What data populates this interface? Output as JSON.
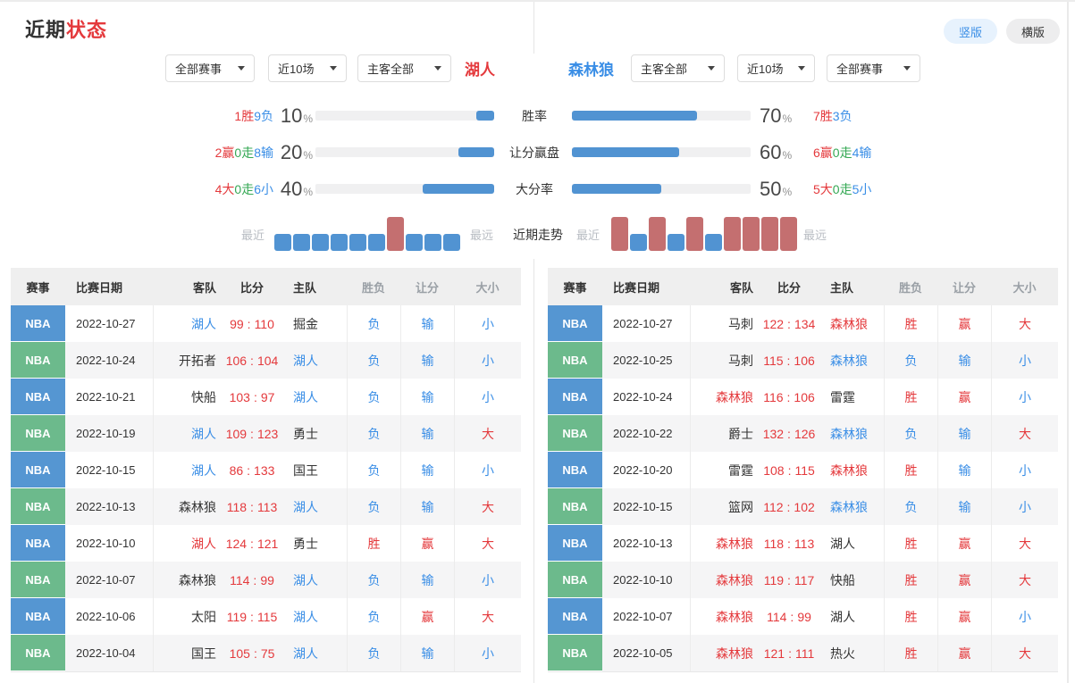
{
  "header": {
    "title_black": "近期",
    "title_red": "状态",
    "vertical_button": "竖版",
    "horizontal_button": "横版"
  },
  "teams": {
    "left": {
      "name": "湖人",
      "color": "red"
    },
    "right": {
      "name": "森林狼",
      "color": "blue"
    }
  },
  "filters": {
    "left": [
      "全部赛事",
      "近10场",
      "主客全部"
    ],
    "right": [
      "主客全部",
      "近10场",
      "全部赛事"
    ]
  },
  "stats": {
    "percent_sign": "%",
    "rows": [
      {
        "metric": "胜率",
        "left_pct": 10,
        "right_pct": 70,
        "left_record": [
          {
            "t": "1胜",
            "c": "red"
          },
          {
            "t": "9负",
            "c": "blue"
          }
        ],
        "right_record": [
          {
            "t": "7胜",
            "c": "red"
          },
          {
            "t": "3负",
            "c": "blue"
          }
        ]
      },
      {
        "metric": "让分赢盘",
        "left_pct": 20,
        "right_pct": 60,
        "left_record": [
          {
            "t": "2赢",
            "c": "red"
          },
          {
            "t": "0走",
            "c": "green"
          },
          {
            "t": "8输",
            "c": "blue"
          }
        ],
        "right_record": [
          {
            "t": "6赢",
            "c": "red"
          },
          {
            "t": "0走",
            "c": "green"
          },
          {
            "t": "4输",
            "c": "blue"
          }
        ]
      },
      {
        "metric": "大分率",
        "left_pct": 40,
        "right_pct": 50,
        "left_record": [
          {
            "t": "4大",
            "c": "red"
          },
          {
            "t": "0走",
            "c": "green"
          },
          {
            "t": "6小",
            "c": "blue"
          }
        ],
        "right_record": [
          {
            "t": "5大",
            "c": "red"
          },
          {
            "t": "0走",
            "c": "green"
          },
          {
            "t": "5小",
            "c": "blue"
          }
        ]
      }
    ],
    "trend": {
      "label": "近期走势",
      "near": "最近",
      "far": "最远",
      "left": [
        "L",
        "L",
        "L",
        "L",
        "L",
        "L",
        "W",
        "L",
        "L",
        "L"
      ],
      "right": [
        "W",
        "L",
        "W",
        "L",
        "W",
        "L",
        "W",
        "W",
        "W",
        "W"
      ]
    }
  },
  "tables": {
    "headers": [
      "赛事",
      "比赛日期",
      "客队",
      "比分",
      "主队",
      "胜负",
      "让分",
      "大小"
    ],
    "score_separator": ":",
    "left_rows": [
      {
        "league": "NBA",
        "badge": "blue",
        "date": "2022-10-27",
        "away": "湖人",
        "away_c": "blue",
        "as": "99",
        "hs": "110",
        "home": "掘金",
        "home_c": "dark",
        "wl": "负",
        "spread": "输",
        "total": "小"
      },
      {
        "league": "NBA",
        "badge": "green",
        "date": "2022-10-24",
        "away": "开拓者",
        "away_c": "dark",
        "as": "106",
        "hs": "104",
        "home": "湖人",
        "home_c": "blue",
        "wl": "负",
        "spread": "输",
        "total": "小"
      },
      {
        "league": "NBA",
        "badge": "blue",
        "date": "2022-10-21",
        "away": "快船",
        "away_c": "dark",
        "as": "103",
        "hs": "97",
        "home": "湖人",
        "home_c": "blue",
        "wl": "负",
        "spread": "输",
        "total": "小"
      },
      {
        "league": "NBA",
        "badge": "green",
        "date": "2022-10-19",
        "away": "湖人",
        "away_c": "blue",
        "as": "109",
        "hs": "123",
        "home": "勇士",
        "home_c": "dark",
        "wl": "负",
        "spread": "输",
        "total": "大"
      },
      {
        "league": "NBA",
        "badge": "blue",
        "date": "2022-10-15",
        "away": "湖人",
        "away_c": "blue",
        "as": "86",
        "hs": "133",
        "home": "国王",
        "home_c": "dark",
        "wl": "负",
        "spread": "输",
        "total": "小"
      },
      {
        "league": "NBA",
        "badge": "green",
        "date": "2022-10-13",
        "away": "森林狼",
        "away_c": "dark",
        "as": "118",
        "hs": "113",
        "home": "湖人",
        "home_c": "blue",
        "wl": "负",
        "spread": "输",
        "total": "大"
      },
      {
        "league": "NBA",
        "badge": "blue",
        "date": "2022-10-10",
        "away": "湖人",
        "away_c": "red",
        "as": "124",
        "hs": "121",
        "home": "勇士",
        "home_c": "dark",
        "wl": "胜",
        "spread": "赢",
        "total": "大"
      },
      {
        "league": "NBA",
        "badge": "green",
        "date": "2022-10-07",
        "away": "森林狼",
        "away_c": "dark",
        "as": "114",
        "hs": "99",
        "home": "湖人",
        "home_c": "blue",
        "wl": "负",
        "spread": "输",
        "total": "小"
      },
      {
        "league": "NBA",
        "badge": "blue",
        "date": "2022-10-06",
        "away": "太阳",
        "away_c": "dark",
        "as": "119",
        "hs": "115",
        "home": "湖人",
        "home_c": "blue",
        "wl": "负",
        "spread": "赢",
        "total": "大"
      },
      {
        "league": "NBA",
        "badge": "green",
        "date": "2022-10-04",
        "away": "国王",
        "away_c": "dark",
        "as": "105",
        "hs": "75",
        "home": "湖人",
        "home_c": "blue",
        "wl": "负",
        "spread": "输",
        "total": "小"
      }
    ],
    "right_rows": [
      {
        "league": "NBA",
        "badge": "blue",
        "date": "2022-10-27",
        "away": "马刺",
        "away_c": "dark",
        "as": "122",
        "hs": "134",
        "home": "森林狼",
        "home_c": "red",
        "wl": "胜",
        "spread": "赢",
        "total": "大"
      },
      {
        "league": "NBA",
        "badge": "green",
        "date": "2022-10-25",
        "away": "马刺",
        "away_c": "dark",
        "as": "115",
        "hs": "106",
        "home": "森林狼",
        "home_c": "blue",
        "wl": "负",
        "spread": "输",
        "total": "小"
      },
      {
        "league": "NBA",
        "badge": "blue",
        "date": "2022-10-24",
        "away": "森林狼",
        "away_c": "red",
        "as": "116",
        "hs": "106",
        "home": "雷霆",
        "home_c": "dark",
        "wl": "胜",
        "spread": "赢",
        "total": "小"
      },
      {
        "league": "NBA",
        "badge": "green",
        "date": "2022-10-22",
        "away": "爵士",
        "away_c": "dark",
        "as": "132",
        "hs": "126",
        "home": "森林狼",
        "home_c": "blue",
        "wl": "负",
        "spread": "输",
        "total": "大"
      },
      {
        "league": "NBA",
        "badge": "blue",
        "date": "2022-10-20",
        "away": "雷霆",
        "away_c": "dark",
        "as": "108",
        "hs": "115",
        "home": "森林狼",
        "home_c": "red",
        "wl": "胜",
        "spread": "输",
        "total": "小"
      },
      {
        "league": "NBA",
        "badge": "green",
        "date": "2022-10-15",
        "away": "篮网",
        "away_c": "dark",
        "as": "112",
        "hs": "102",
        "home": "森林狼",
        "home_c": "blue",
        "wl": "负",
        "spread": "输",
        "total": "小"
      },
      {
        "league": "NBA",
        "badge": "blue",
        "date": "2022-10-13",
        "away": "森林狼",
        "away_c": "red",
        "as": "118",
        "hs": "113",
        "home": "湖人",
        "home_c": "dark",
        "wl": "胜",
        "spread": "赢",
        "total": "大"
      },
      {
        "league": "NBA",
        "badge": "green",
        "date": "2022-10-10",
        "away": "森林狼",
        "away_c": "red",
        "as": "119",
        "hs": "117",
        "home": "快船",
        "home_c": "dark",
        "wl": "胜",
        "spread": "赢",
        "total": "大"
      },
      {
        "league": "NBA",
        "badge": "blue",
        "date": "2022-10-07",
        "away": "森林狼",
        "away_c": "red",
        "as": "114",
        "hs": "99",
        "home": "湖人",
        "home_c": "dark",
        "wl": "胜",
        "spread": "赢",
        "total": "小"
      },
      {
        "league": "NBA",
        "badge": "green",
        "date": "2022-10-05",
        "away": "森林狼",
        "away_c": "red",
        "as": "121",
        "hs": "111",
        "home": "热火",
        "home_c": "dark",
        "wl": "胜",
        "spread": "赢",
        "total": "大"
      }
    ]
  },
  "result_color_map": {
    "胜": "red",
    "负": "blue",
    "赢": "red",
    "输": "blue",
    "大": "red",
    "小": "blue"
  },
  "colors": {
    "bar_blue": "#5193d2",
    "bar_track": "#f0f0f1",
    "badge_blue": "#5596d2",
    "badge_green": "#6cba8c",
    "trend_win": "#c46f70",
    "trend_loss": "#5193d2",
    "button_active_bg": "#e7f2fd",
    "button_active_text": "#3a8ee6",
    "button_bg": "#ededee",
    "button_text": "#333333",
    "text": {
      "red": "#e4393c",
      "blue": "#3a8ee6",
      "green": "#35a854",
      "dark": "#333333"
    }
  }
}
